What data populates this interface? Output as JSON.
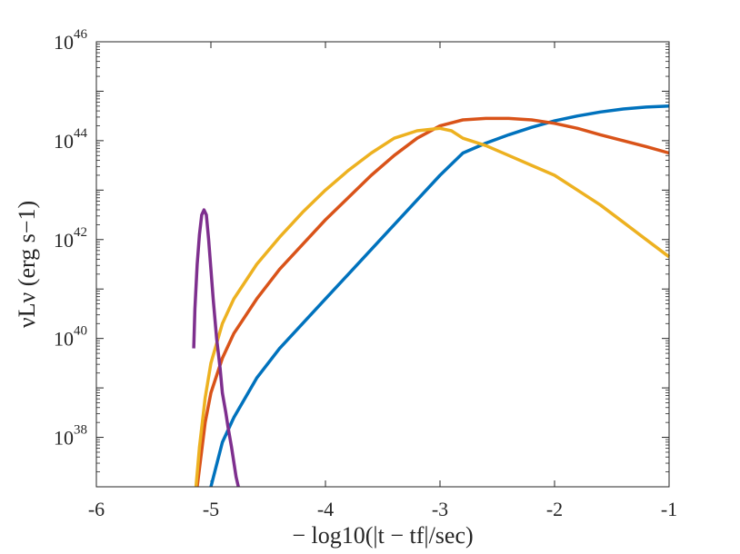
{
  "chart_data": {
    "type": "line",
    "xlabel": "− log10(|t − tf|/sec)",
    "ylabel": "νLν (erg s−1)",
    "xlim": [
      -6,
      -1
    ],
    "ylim": [
      37,
      46
    ],
    "y_scale": "log",
    "grid": false,
    "x_ticks": [
      {
        "value": -6,
        "label": "-6"
      },
      {
        "value": -5,
        "label": "-5"
      },
      {
        "value": -4,
        "label": "-4"
      },
      {
        "value": -3,
        "label": "-3"
      },
      {
        "value": -2,
        "label": "-2"
      },
      {
        "value": -1,
        "label": "-1"
      }
    ],
    "y_ticks": [
      {
        "value": 38,
        "base": "10",
        "exp": "38"
      },
      {
        "value": 40,
        "base": "10",
        "exp": "40"
      },
      {
        "value": 42,
        "base": "10",
        "exp": "42"
      },
      {
        "value": 44,
        "base": "10",
        "exp": "44"
      },
      {
        "value": 46,
        "base": "10",
        "exp": "46"
      }
    ],
    "series": [
      {
        "color": "#0072BD",
        "x": [
          -5.0,
          -4.9,
          -4.8,
          -4.6,
          -4.4,
          -4.2,
          -4.0,
          -3.8,
          -3.6,
          -3.4,
          -3.2,
          -3.0,
          -2.8,
          -2.6,
          -2.4,
          -2.2,
          -2.0,
          -1.8,
          -1.6,
          -1.4,
          -1.2,
          -1.0
        ],
        "y": [
          37.0,
          37.9,
          38.4,
          39.2,
          39.8,
          40.3,
          40.8,
          41.3,
          41.8,
          42.3,
          42.8,
          43.3,
          43.75,
          43.95,
          44.12,
          44.27,
          44.4,
          44.5,
          44.58,
          44.64,
          44.68,
          44.7
        ]
      },
      {
        "color": "#D95319",
        "x": [
          -5.12,
          -5.05,
          -5.0,
          -4.9,
          -4.8,
          -4.6,
          -4.4,
          -4.2,
          -4.0,
          -3.8,
          -3.6,
          -3.4,
          -3.2,
          -3.0,
          -2.8,
          -2.6,
          -2.4,
          -2.2,
          -2.0,
          -1.8,
          -1.6,
          -1.4,
          -1.2,
          -1.0
        ],
        "y": [
          37.0,
          38.3,
          38.9,
          39.6,
          40.1,
          40.8,
          41.4,
          41.9,
          42.4,
          42.85,
          43.3,
          43.7,
          44.05,
          44.3,
          44.42,
          44.45,
          44.45,
          44.42,
          44.35,
          44.25,
          44.12,
          44.0,
          43.88,
          43.75
        ]
      },
      {
        "color": "#EDB120",
        "x": [
          -5.13,
          -5.1,
          -5.05,
          -5.0,
          -4.9,
          -4.8,
          -4.6,
          -4.4,
          -4.2,
          -4.0,
          -3.8,
          -3.6,
          -3.4,
          -3.2,
          -3.0,
          -2.9,
          -2.8,
          -2.6,
          -2.4,
          -2.2,
          -2.0,
          -1.8,
          -1.6,
          -1.4,
          -1.2,
          -1.0
        ],
        "y": [
          37.0,
          37.8,
          38.8,
          39.5,
          40.3,
          40.8,
          41.5,
          42.05,
          42.55,
          43.0,
          43.4,
          43.75,
          44.05,
          44.2,
          44.25,
          44.2,
          44.05,
          43.9,
          43.7,
          43.5,
          43.3,
          43.0,
          42.7,
          42.35,
          42.0,
          41.65
        ]
      },
      {
        "color": "#7E2F8E",
        "x": [
          -5.15,
          -5.14,
          -5.12,
          -5.1,
          -5.08,
          -5.06,
          -5.04,
          -5.02,
          -5.0,
          -4.98,
          -4.95,
          -4.92,
          -4.9,
          -4.87,
          -4.85,
          -4.82,
          -4.8,
          -4.78,
          -4.76
        ],
        "y": [
          39.8,
          40.6,
          41.5,
          42.1,
          42.5,
          42.6,
          42.5,
          42.0,
          41.4,
          40.8,
          40.0,
          39.4,
          38.9,
          38.5,
          38.2,
          37.8,
          37.5,
          37.2,
          37.0
        ]
      }
    ]
  }
}
